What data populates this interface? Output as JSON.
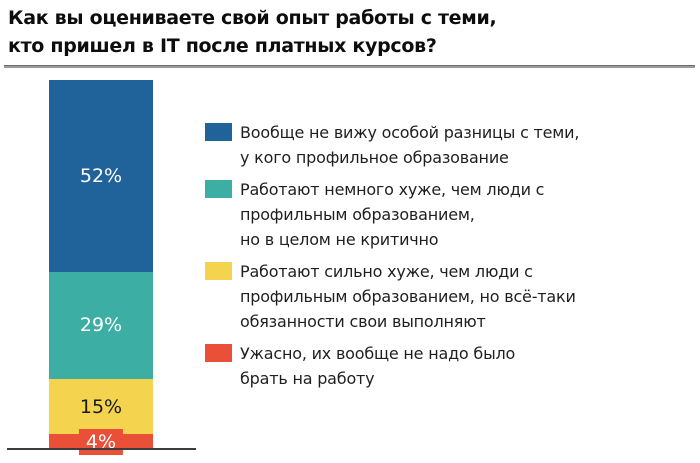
{
  "title": {
    "line1": "Как вы оцениваете свой опыт работы с теми,",
    "line2": "кто пришел в IT после платных курсов?"
  },
  "chart_data": {
    "type": "bar",
    "subtype": "stacked-single-column",
    "orientation": "vertical",
    "title": "Как вы оцениваете свой опыт работы с теми, кто пришел в IT после платных курсов?",
    "total": 100,
    "unit": "%",
    "grid": false,
    "legend_position": "right",
    "segments": [
      {
        "name": "no-difference",
        "value": 52,
        "label": "52%",
        "color": "#20639B",
        "label_color": "#ffffff",
        "boxed": false,
        "legend_label": "Вообще не вижу особой разницы с теми, у кого профильное образование"
      },
      {
        "name": "slightly-worse",
        "value": 29,
        "label": "29%",
        "color": "#3CAEA3",
        "label_color": "#ffffff",
        "boxed": false,
        "legend_label": "Работают немного хуже, чем люди с профильным образованием, но в целом не критично"
      },
      {
        "name": "much-worse",
        "value": 15,
        "label": "15%",
        "color": "#F4D34F",
        "label_color": "#1a1a1a",
        "boxed": false,
        "legend_label": "Работают сильно хуже, чем люди с профильным образованием, но всё-таки обязанности свои выполняют"
      },
      {
        "name": "terrible",
        "value": 4,
        "label": "4%",
        "color": "#EA4F38",
        "label_color": "#ffffff",
        "boxed": true,
        "legend_label": "Ужасно, их вообще не надо было брать на работу"
      }
    ]
  },
  "legend": {
    "items": [
      {
        "name": "no-difference",
        "color": "#20639B",
        "lines": [
          "Вообще не вижу особой разницы с теми,",
          "у кого профильное образование"
        ]
      },
      {
        "name": "slightly-worse",
        "color": "#3CAEA3",
        "lines": [
          "Работают немного хуже, чем люди с",
          "профильным образованием,",
          "но в целом не критично"
        ]
      },
      {
        "name": "much-worse",
        "color": "#F4D34F",
        "lines": [
          "Работают сильно хуже, чем люди с",
          "профильным образованием, но всё-таки",
          "обязанности свои выполняют"
        ]
      },
      {
        "name": "terrible",
        "color": "#EA4F38",
        "lines": [
          "Ужасно, их вообще не надо было",
          "брать на работу"
        ]
      }
    ]
  },
  "colors": {
    "background": "#ffffff",
    "title_text": "#0d0d0d",
    "legend_text": "#1f1f1f",
    "divider": "#9a9a9a",
    "axis_line": "#3c3c3c"
  }
}
